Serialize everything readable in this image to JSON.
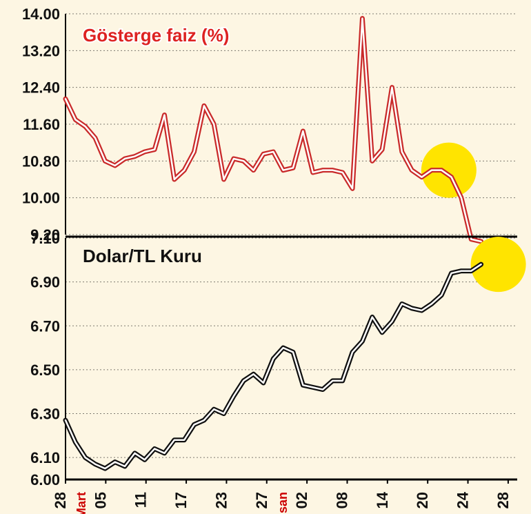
{
  "background_color": "#fdf6e3",
  "highlight_color": "#ffe400",
  "x_axis": {
    "tick_labels": [
      "28",
      "05",
      "11",
      "17",
      "23",
      "27",
      "02",
      "08",
      "14",
      "20",
      "24",
      "28"
    ],
    "month_labels": [
      {
        "after_index": 0,
        "text": "Mart"
      },
      {
        "after_index": 5,
        "text": "Nisan"
      }
    ],
    "label_fontsize": 22,
    "label_fontweight": 700,
    "month_color": "#c00",
    "rotation_deg": -90
  },
  "top_chart": {
    "type": "line",
    "title": "Gösterge faiz (%)",
    "title_fontsize": 26,
    "title_fontweight": 900,
    "title_color": "#d22",
    "title_stroke": "#ffffff",
    "ylim": [
      9.2,
      14.0
    ],
    "yticks": [
      9.2,
      10.0,
      10.8,
      11.6,
      12.4,
      13.2,
      14.0
    ],
    "grid_color": "#000000",
    "grid_dash": "2 3",
    "line_color_outer": "#c92a2a",
    "line_color_inner": "#ffffff",
    "line_width_outer": 7,
    "line_width_inner": 2.5,
    "highlight_point_index": 37,
    "data": [
      12.15,
      11.7,
      11.55,
      11.3,
      10.8,
      10.7,
      10.85,
      10.9,
      11.0,
      11.05,
      11.8,
      10.4,
      10.6,
      11.0,
      12.0,
      11.6,
      10.4,
      10.85,
      10.8,
      10.6,
      10.95,
      11.0,
      10.6,
      10.65,
      11.45,
      10.55,
      10.6,
      10.6,
      10.55,
      10.2,
      13.9,
      10.8,
      11.05,
      12.4,
      11.0,
      10.6,
      10.45,
      10.6,
      10.6,
      10.45,
      10.0,
      9.1,
      9.05
    ]
  },
  "bottom_chart": {
    "type": "line",
    "title": "Dolar/TL Kuru",
    "title_fontsize": 26,
    "title_fontweight": 900,
    "title_color": "#111111",
    "ylim": [
      6.0,
      7.1
    ],
    "yticks": [
      6.0,
      6.1,
      6.3,
      6.5,
      6.7,
      6.9,
      7.1
    ],
    "grid_color": "#000000",
    "grid_dash": "2 3",
    "line_color_outer": "#111111",
    "line_color_inner": "#ffffff",
    "line_width_outer": 7,
    "line_width_inner": 2.5,
    "highlight_point_index": 42,
    "data": [
      6.27,
      6.17,
      6.1,
      6.07,
      6.05,
      6.08,
      6.06,
      6.12,
      6.09,
      6.14,
      6.12,
      6.18,
      6.18,
      6.25,
      6.27,
      6.32,
      6.3,
      6.38,
      6.45,
      6.48,
      6.44,
      6.55,
      6.6,
      6.58,
      6.43,
      6.42,
      6.41,
      6.45,
      6.45,
      6.58,
      6.63,
      6.74,
      6.67,
      6.72,
      6.8,
      6.78,
      6.77,
      6.8,
      6.84,
      6.94,
      6.95,
      6.95,
      6.98
    ]
  }
}
